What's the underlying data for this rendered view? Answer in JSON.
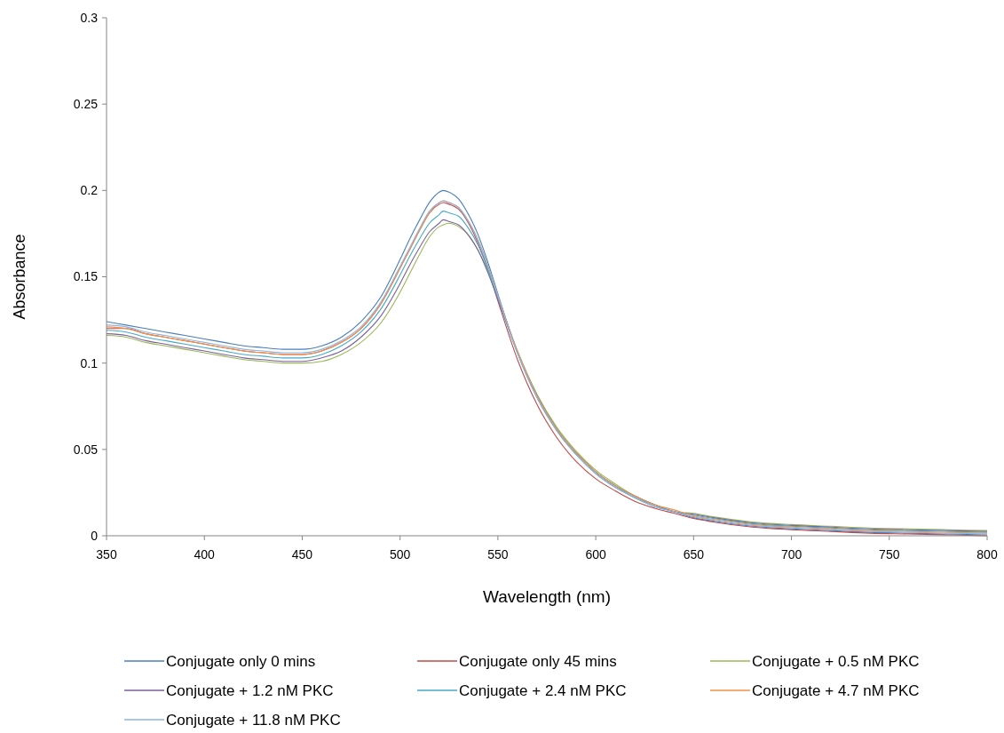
{
  "chart_data": {
    "type": "line",
    "xlabel": "Wavelength (nm)",
    "ylabel": "Absorbance",
    "xlim": [
      350,
      800
    ],
    "ylim": [
      0,
      0.3
    ],
    "xticks": [
      350,
      400,
      450,
      500,
      550,
      600,
      650,
      700,
      750,
      800
    ],
    "yticks": [
      0,
      0.05,
      0.1,
      0.15,
      0.2,
      0.25,
      0.3
    ],
    "grid": false,
    "legend": "bottom",
    "marker": "none",
    "line_style": "solid",
    "x": [
      350,
      360,
      370,
      380,
      390,
      400,
      410,
      420,
      430,
      440,
      450,
      460,
      470,
      480,
      490,
      500,
      505,
      510,
      515,
      520,
      522,
      525,
      530,
      535,
      540,
      545,
      550,
      560,
      570,
      580,
      590,
      600,
      610,
      620,
      630,
      640,
      650,
      660,
      680,
      700,
      720,
      740,
      760,
      780,
      800
    ],
    "series": [
      {
        "name": "Conjugate only 0 mins",
        "color": "#4a7ebb",
        "values": [
          0.124,
          0.122,
          0.12,
          0.118,
          0.116,
          0.114,
          0.112,
          0.11,
          0.109,
          0.108,
          0.108,
          0.11,
          0.115,
          0.124,
          0.138,
          0.16,
          0.172,
          0.183,
          0.193,
          0.199,
          0.2,
          0.199,
          0.195,
          0.186,
          0.174,
          0.158,
          0.14,
          0.106,
          0.08,
          0.061,
          0.047,
          0.036,
          0.028,
          0.022,
          0.017,
          0.014,
          0.0105,
          0.0085,
          0.0055,
          0.004,
          0.003,
          0.002,
          0.0015,
          0.001,
          0.0005
        ]
      },
      {
        "name": "Conjugate only 45 mins",
        "color": "#be4b48",
        "values": [
          0.12,
          0.12,
          0.117,
          0.115,
          0.113,
          0.111,
          0.109,
          0.107,
          0.106,
          0.105,
          0.105,
          0.107,
          0.112,
          0.12,
          0.134,
          0.155,
          0.166,
          0.177,
          0.187,
          0.192,
          0.193,
          0.192,
          0.189,
          0.181,
          0.169,
          0.154,
          0.136,
          0.102,
          0.076,
          0.057,
          0.043,
          0.033,
          0.026,
          0.02,
          0.016,
          0.013,
          0.01,
          0.008,
          0.005,
          0.0035,
          0.0025,
          0.0015,
          0.001,
          0.0005,
          0
        ]
      },
      {
        "name": "Conjugate + 0.5 nM PKC",
        "color": "#98b954",
        "values": [
          0.116,
          0.115,
          0.112,
          0.11,
          0.108,
          0.106,
          0.104,
          0.102,
          0.101,
          0.1,
          0.1,
          0.101,
          0.105,
          0.112,
          0.123,
          0.141,
          0.152,
          0.163,
          0.173,
          0.179,
          0.18,
          0.181,
          0.179,
          0.174,
          0.165,
          0.153,
          0.138,
          0.107,
          0.082,
          0.063,
          0.049,
          0.038,
          0.03,
          0.023,
          0.018,
          0.014,
          0.013,
          0.011,
          0.008,
          0.0065,
          0.0055,
          0.0045,
          0.004,
          0.0035,
          0.003
        ]
      },
      {
        "name": "Conjugate + 1.2  nM PKC",
        "color": "#7d60a0",
        "values": [
          0.117,
          0.116,
          0.113,
          0.111,
          0.109,
          0.107,
          0.105,
          0.103,
          0.102,
          0.101,
          0.101,
          0.103,
          0.107,
          0.115,
          0.127,
          0.146,
          0.157,
          0.167,
          0.176,
          0.181,
          0.183,
          0.182,
          0.18,
          0.174,
          0.165,
          0.152,
          0.137,
          0.106,
          0.081,
          0.062,
          0.048,
          0.037,
          0.029,
          0.023,
          0.018,
          0.014,
          0.0125,
          0.0105,
          0.0075,
          0.006,
          0.005,
          0.004,
          0.0035,
          0.003,
          0.0025
        ]
      },
      {
        "name": "Conjugate + 2.4 nM PKC",
        "color": "#46aac5",
        "values": [
          0.119,
          0.118,
          0.115,
          0.113,
          0.111,
          0.109,
          0.107,
          0.105,
          0.104,
          0.103,
          0.103,
          0.105,
          0.11,
          0.118,
          0.131,
          0.151,
          0.162,
          0.172,
          0.181,
          0.186,
          0.188,
          0.187,
          0.185,
          0.178,
          0.168,
          0.154,
          0.138,
          0.106,
          0.081,
          0.062,
          0.048,
          0.037,
          0.029,
          0.022,
          0.018,
          0.014,
          0.012,
          0.01,
          0.007,
          0.0055,
          0.0045,
          0.0035,
          0.003,
          0.0025,
          0.002
        ]
      },
      {
        "name": "Conjugate + 4.7 nM PKC",
        "color": "#f69240",
        "values": [
          0.121,
          0.12,
          0.117,
          0.115,
          0.113,
          0.111,
          0.109,
          0.107,
          0.106,
          0.105,
          0.105,
          0.107,
          0.112,
          0.12,
          0.134,
          0.155,
          0.166,
          0.177,
          0.187,
          0.193,
          0.194,
          0.193,
          0.19,
          0.182,
          0.171,
          0.156,
          0.139,
          0.107,
          0.081,
          0.062,
          0.048,
          0.037,
          0.029,
          0.023,
          0.018,
          0.015,
          0.0115,
          0.0095,
          0.0065,
          0.005,
          0.004,
          0.003,
          0.0025,
          0.002,
          0.0015
        ]
      },
      {
        "name": "Conjugate + 11.8 nM PKC",
        "color": "#8eb4e3",
        "values": [
          0.122,
          0.121,
          0.118,
          0.116,
          0.114,
          0.112,
          0.11,
          0.108,
          0.107,
          0.106,
          0.106,
          0.108,
          0.113,
          0.121,
          0.135,
          0.156,
          0.167,
          0.178,
          0.188,
          0.193,
          0.194,
          0.193,
          0.19,
          0.182,
          0.171,
          0.156,
          0.139,
          0.106,
          0.08,
          0.061,
          0.047,
          0.036,
          0.028,
          0.022,
          0.017,
          0.014,
          0.011,
          0.009,
          0.006,
          0.0045,
          0.0035,
          0.0025,
          0.002,
          0.0015,
          0.001
        ]
      }
    ]
  }
}
